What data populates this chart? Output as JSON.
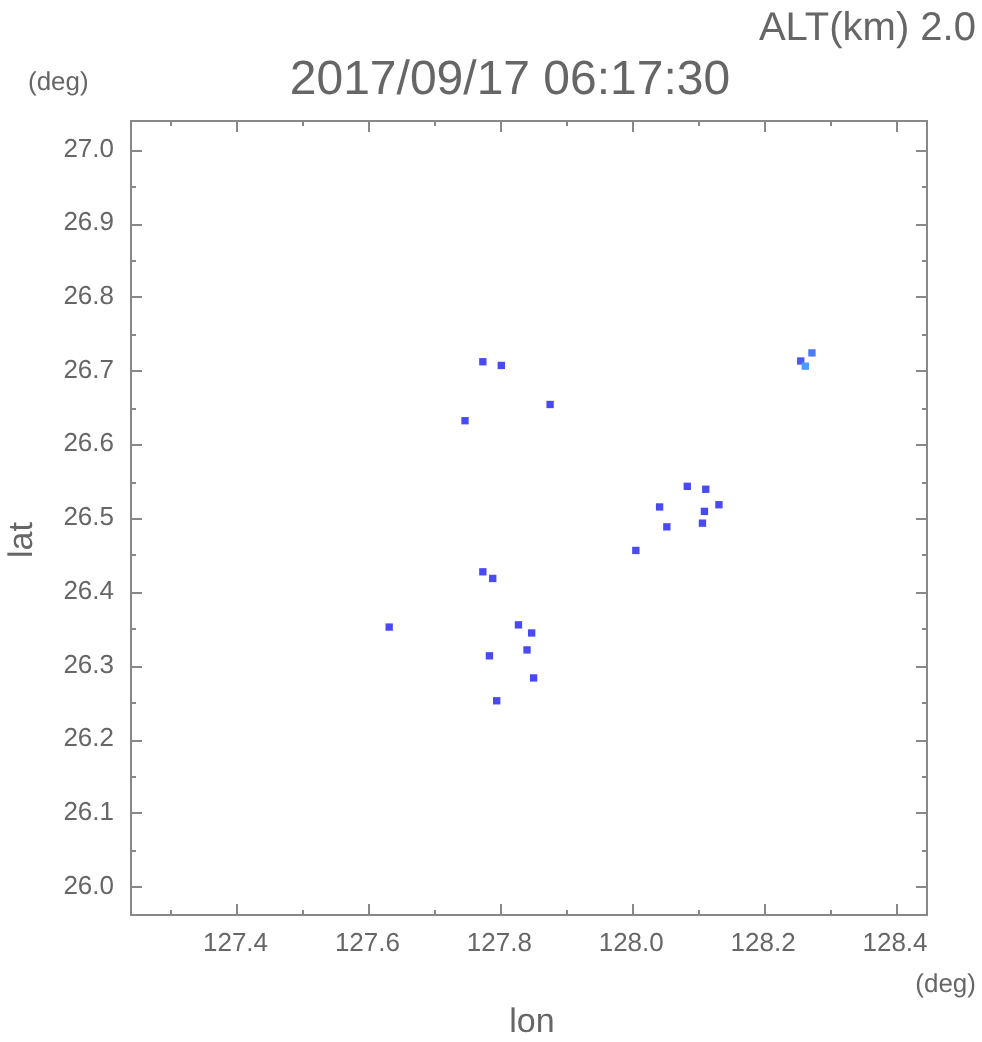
{
  "chart_data": {
    "type": "scatter",
    "title": "2017/09/17 06:17:30",
    "xlabel": "lon",
    "ylabel": "lat",
    "annotations": [
      "ALT(km) 2.0",
      "(deg)",
      "(deg)"
    ],
    "series": [
      {
        "marker": "square",
        "x": [
          127.775,
          127.803,
          127.877,
          127.748,
          127.775,
          127.79,
          127.633,
          127.829,
          127.849,
          127.842,
          127.785,
          127.852,
          127.796,
          128.257,
          128.264,
          128.274,
          128.085,
          128.113,
          128.043,
          128.111,
          128.133,
          128.054,
          128.108,
          128.007
        ],
        "values": [
          26.712,
          26.707,
          26.654,
          26.632,
          26.427,
          26.418,
          26.352,
          26.355,
          26.344,
          26.321,
          26.313,
          26.283,
          26.252,
          26.713,
          26.706,
          26.724,
          26.543,
          26.539,
          26.515,
          26.509,
          26.518,
          26.488,
          26.493,
          26.456
        ],
        "colors": [
          "#4a4af5",
          "#4a4af5",
          "#4a4af5",
          "#4a4af5",
          "#4a4af5",
          "#4a4af5",
          "#4a4af5",
          "#4a4af5",
          "#4a4af5",
          "#4a4af5",
          "#4a4af5",
          "#4a4af5",
          "#4a4af5",
          "#4a5af5",
          "#4a9cff",
          "#4a7cf5",
          "#4a4af5",
          "#4a4af5",
          "#4a4af5",
          "#4a4af5",
          "#4a4af5",
          "#4a4af5",
          "#4a4af5",
          "#4a4af5"
        ]
      }
    ],
    "xlim": [
      127.24,
      128.45
    ],
    "ylim": [
      25.96,
      27.04
    ],
    "xticks": [
      {
        "value": 127.3,
        "label": null
      },
      127.4,
      {
        "value": 127.5,
        "label": null
      },
      127.6,
      {
        "value": 127.7,
        "label": null
      },
      127.8,
      {
        "value": 127.9,
        "label": null
      },
      {
        "value": 128,
        "label": "128.0"
      },
      {
        "value": 128.1,
        "label": null
      },
      128.2,
      {
        "value": 128.3,
        "label": null
      },
      128.4
    ],
    "yticks": [
      {
        "value": 26,
        "label": "26.0"
      },
      {
        "value": 26.05,
        "label": null
      },
      26.1,
      {
        "value": 26.15,
        "label": null
      },
      26.2,
      {
        "value": 26.25,
        "label": null
      },
      26.3,
      {
        "value": 26.35,
        "label": null
      },
      26.4,
      {
        "value": 26.45,
        "label": null
      },
      26.5,
      {
        "value": 26.55,
        "label": null
      },
      26.6,
      {
        "value": 26.65,
        "label": null
      },
      26.7,
      {
        "value": 26.75,
        "label": null
      },
      26.8,
      {
        "value": 26.85,
        "label": null
      },
      26.9,
      {
        "value": 26.95,
        "label": null
      },
      {
        "value": 27,
        "label": "27.0"
      }
    ],
    "grid": false,
    "legend": false
  }
}
